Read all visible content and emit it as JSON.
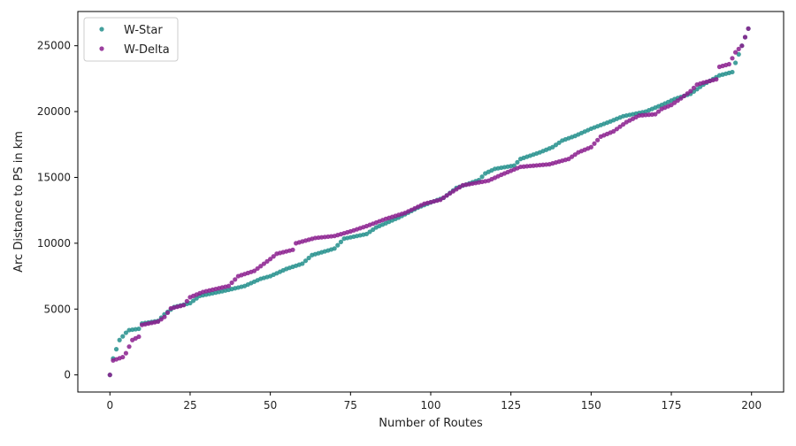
{
  "chart_data": {
    "type": "scatter",
    "title": "",
    "xlabel": "Number of Routes",
    "ylabel": "Arc Distance to PS in km",
    "xlim": [
      -10,
      210
    ],
    "ylim": [
      -1300,
      27600
    ],
    "xticks": [
      0,
      25,
      50,
      75,
      100,
      125,
      150,
      175,
      200
    ],
    "yticks": [
      0,
      5000,
      10000,
      15000,
      20000,
      25000
    ],
    "grid": false,
    "legend": {
      "placement": "top-left"
    },
    "series": [
      {
        "name": "W-Star",
        "color": "#238f8c",
        "anchors": [
          [
            0,
            0
          ],
          [
            1,
            1250
          ],
          [
            3,
            2650
          ],
          [
            5,
            3200
          ],
          [
            6,
            3400
          ],
          [
            9,
            3500
          ],
          [
            10,
            3900
          ],
          [
            15,
            4100
          ],
          [
            17,
            4600
          ],
          [
            20,
            5150
          ],
          [
            25,
            5450
          ],
          [
            28,
            6000
          ],
          [
            35,
            6350
          ],
          [
            42,
            6750
          ],
          [
            47,
            7300
          ],
          [
            50,
            7500
          ],
          [
            55,
            8050
          ],
          [
            60,
            8450
          ],
          [
            63,
            9100
          ],
          [
            68,
            9450
          ],
          [
            70,
            9600
          ],
          [
            73,
            10350
          ],
          [
            76,
            10500
          ],
          [
            80,
            10700
          ],
          [
            83,
            11200
          ],
          [
            90,
            11950
          ],
          [
            96,
            12700
          ],
          [
            100,
            13100
          ],
          [
            104,
            13450
          ],
          [
            108,
            14200
          ],
          [
            115,
            14800
          ],
          [
            117,
            15300
          ],
          [
            120,
            15650
          ],
          [
            126,
            15900
          ],
          [
            128,
            16400
          ],
          [
            134,
            16900
          ],
          [
            138,
            17300
          ],
          [
            141,
            17800
          ],
          [
            145,
            18150
          ],
          [
            150,
            18700
          ],
          [
            156,
            19250
          ],
          [
            160,
            19650
          ],
          [
            167,
            20000
          ],
          [
            172,
            20500
          ],
          [
            176,
            20950
          ],
          [
            181,
            21350
          ],
          [
            185,
            22050
          ],
          [
            190,
            22750
          ],
          [
            194,
            23000
          ],
          [
            195,
            23700
          ],
          [
            199,
            26300
          ]
        ]
      },
      {
        "name": "W-Delta",
        "color": "#8b1f8e",
        "anchors": [
          [
            0,
            0
          ],
          [
            1,
            1100
          ],
          [
            4,
            1350
          ],
          [
            5,
            1650
          ],
          [
            7,
            2650
          ],
          [
            9,
            2900
          ],
          [
            10,
            3800
          ],
          [
            15,
            4050
          ],
          [
            17,
            4400
          ],
          [
            19,
            5050
          ],
          [
            23,
            5300
          ],
          [
            25,
            5900
          ],
          [
            29,
            6300
          ],
          [
            37,
            6750
          ],
          [
            40,
            7500
          ],
          [
            45,
            7900
          ],
          [
            50,
            8800
          ],
          [
            52,
            9200
          ],
          [
            57,
            9500
          ],
          [
            58,
            10000
          ],
          [
            64,
            10400
          ],
          [
            70,
            10550
          ],
          [
            75,
            10900
          ],
          [
            80,
            11300
          ],
          [
            86,
            11850
          ],
          [
            92,
            12300
          ],
          [
            98,
            13000
          ],
          [
            103,
            13300
          ],
          [
            107,
            13950
          ],
          [
            110,
            14400
          ],
          [
            118,
            14750
          ],
          [
            122,
            15200
          ],
          [
            128,
            15800
          ],
          [
            137,
            16000
          ],
          [
            143,
            16400
          ],
          [
            146,
            16900
          ],
          [
            150,
            17300
          ],
          [
            153,
            18100
          ],
          [
            157,
            18500
          ],
          [
            161,
            19200
          ],
          [
            165,
            19700
          ],
          [
            170,
            19800
          ],
          [
            172,
            20200
          ],
          [
            175,
            20500
          ],
          [
            178,
            21000
          ],
          [
            181,
            21550
          ],
          [
            183,
            22050
          ],
          [
            185,
            22200
          ],
          [
            189,
            22450
          ],
          [
            190,
            23400
          ],
          [
            193,
            23600
          ],
          [
            195,
            24500
          ],
          [
            197,
            25000
          ],
          [
            199,
            26300
          ]
        ]
      }
    ]
  }
}
